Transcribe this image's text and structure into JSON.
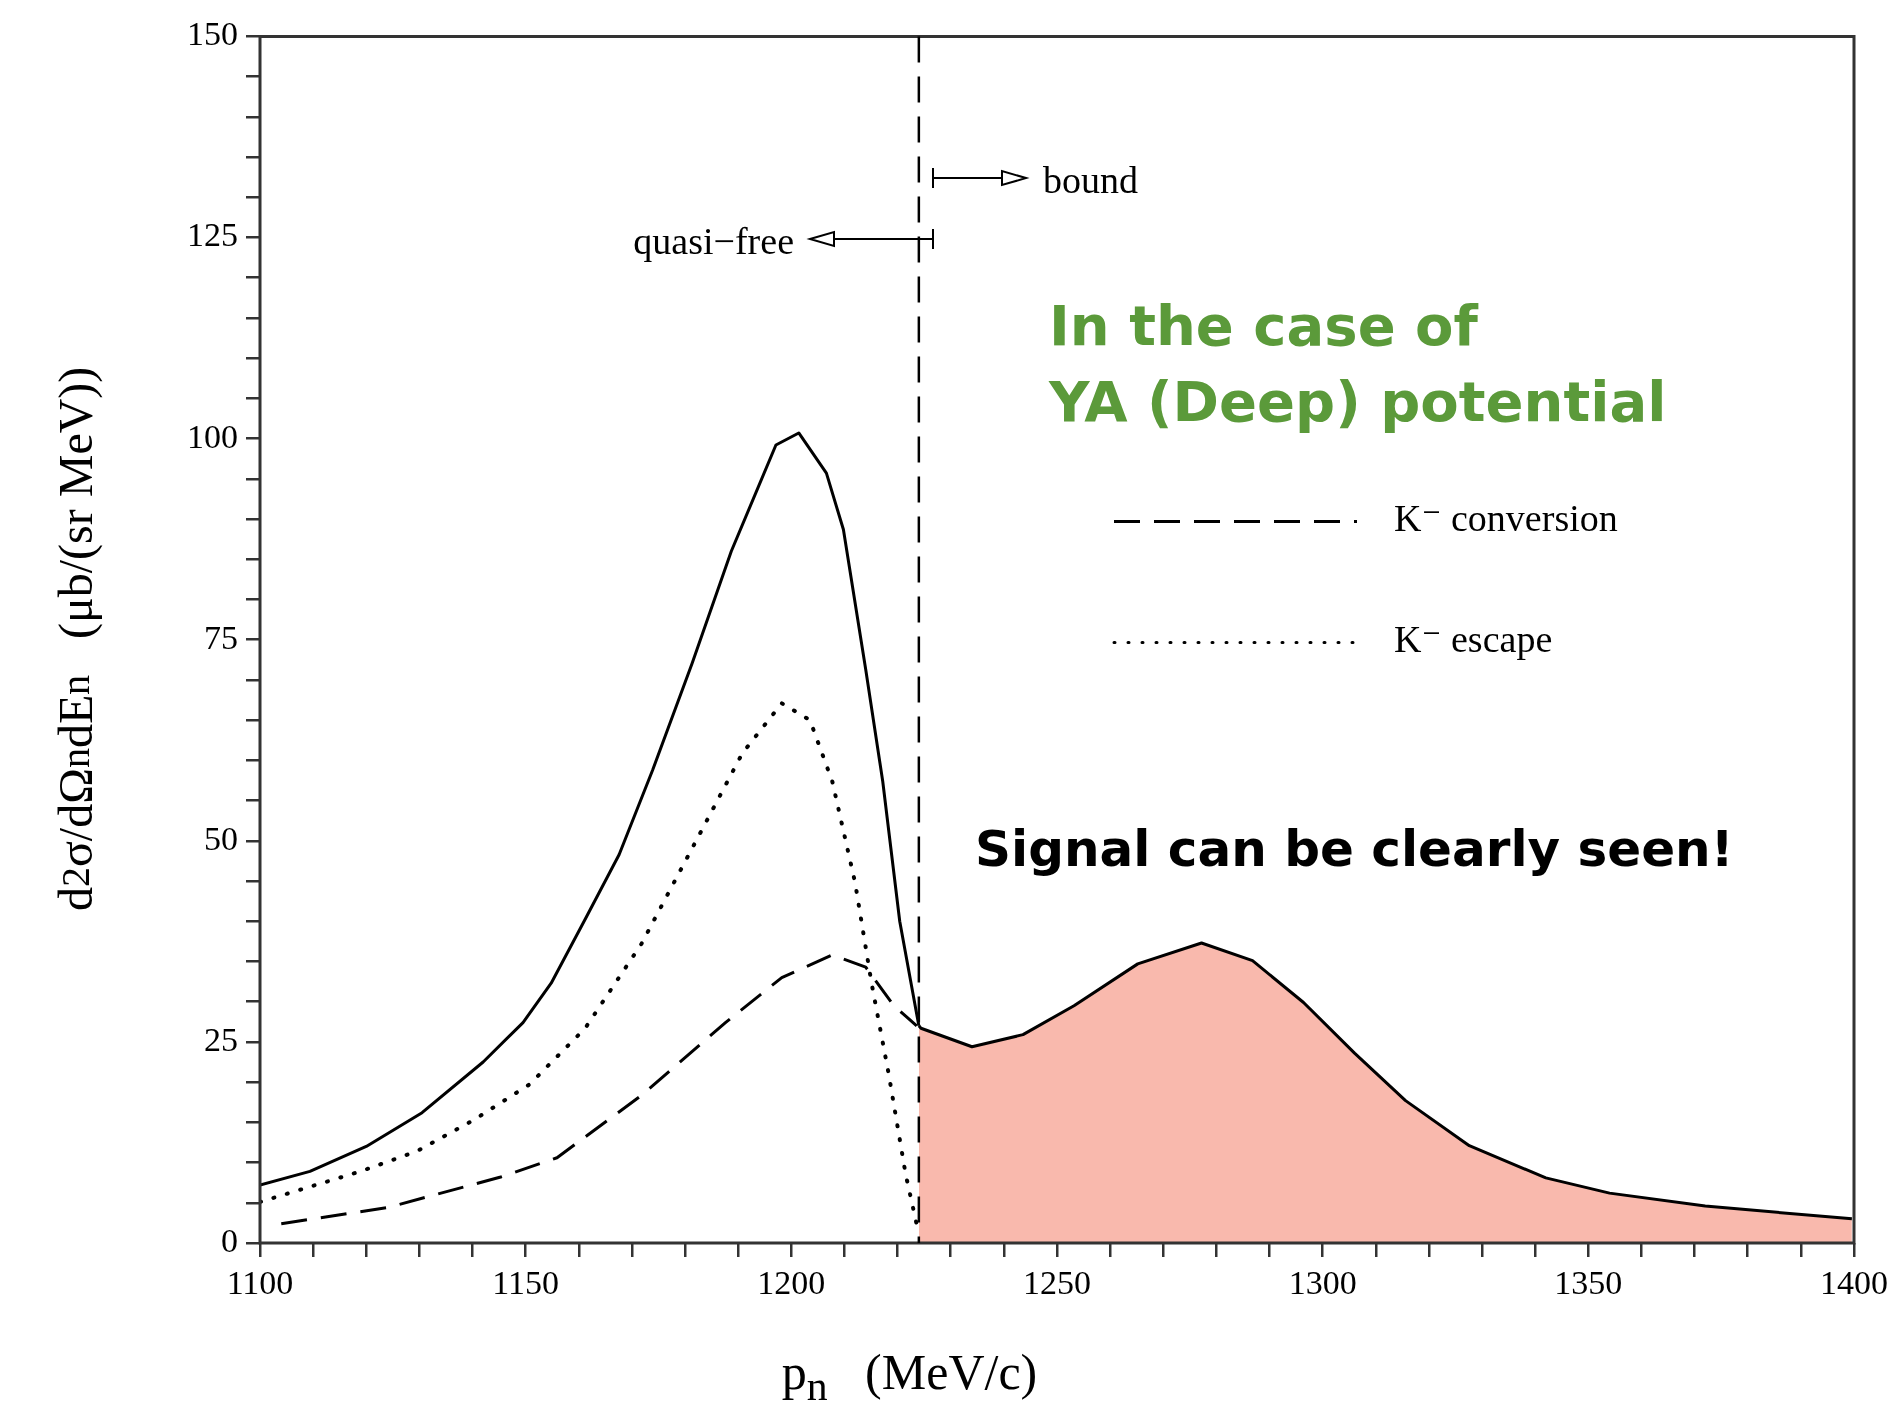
{
  "chart_data": {
    "type": "line",
    "xlabel": "p$_{n}$   (MeV/c)",
    "ylabel": "d$^{2}$σ/dΩ$_{n}$dE$_{n}$   (μb/(sr MeV))",
    "xlim": [
      1100,
      1400
    ],
    "ylim": [
      0,
      150
    ],
    "xticks": [
      1100,
      {
        "value": 1110,
        "label": null
      },
      {
        "value": 1120,
        "label": null
      },
      {
        "value": 1130,
        "label": null
      },
      {
        "value": 1140,
        "label": null
      },
      1150,
      {
        "value": 1160,
        "label": null
      },
      {
        "value": 1170,
        "label": null
      },
      {
        "value": 1180,
        "label": null
      },
      {
        "value": 1190,
        "label": null
      },
      1200,
      {
        "value": 1210,
        "label": null
      },
      {
        "value": 1220,
        "label": null
      },
      {
        "value": 1230,
        "label": null
      },
      {
        "value": 1240,
        "label": null
      },
      1250,
      {
        "value": 1260,
        "label": null
      },
      {
        "value": 1270,
        "label": null
      },
      {
        "value": 1280,
        "label": null
      },
      {
        "value": 1290,
        "label": null
      },
      1300,
      {
        "value": 1310,
        "label": null
      },
      {
        "value": 1320,
        "label": null
      },
      {
        "value": 1330,
        "label": null
      },
      {
        "value": 1340,
        "label": null
      },
      1350,
      {
        "value": 1360,
        "label": null
      },
      {
        "value": 1370,
        "label": null
      },
      {
        "value": 1380,
        "label": null
      },
      {
        "value": 1390,
        "label": null
      },
      1400
    ],
    "yticks": [
      0,
      {
        "value": 5,
        "label": null
      },
      {
        "value": 10,
        "label": null
      },
      {
        "value": 15,
        "label": null
      },
      {
        "value": 20,
        "label": null
      },
      25,
      {
        "value": 30,
        "label": null
      },
      {
        "value": 35,
        "label": null
      },
      {
        "value": 40,
        "label": null
      },
      {
        "value": 45,
        "label": null
      },
      50,
      {
        "value": 55,
        "label": null
      },
      {
        "value": 60,
        "label": null
      },
      {
        "value": 65,
        "label": null
      },
      {
        "value": 70,
        "label": null
      },
      75,
      {
        "value": 80,
        "label": null
      },
      {
        "value": 85,
        "label": null
      },
      {
        "value": 90,
        "label": null
      },
      {
        "value": 95,
        "label": null
      },
      100,
      {
        "value": 105,
        "label": null
      },
      {
        "value": 110,
        "label": null
      },
      {
        "value": 115,
        "label": null
      },
      {
        "value": 120,
        "label": null
      },
      125,
      {
        "value": 130,
        "label": null
      },
      {
        "value": 135,
        "label": null
      },
      {
        "value": 140,
        "label": null
      },
      {
        "value": 145,
        "label": null
      },
      150
    ],
    "grid": false,
    "legend": "right",
    "series": [
      {
        "type": "line",
        "color": "#000000",
        "line_style": "solid",
        "x": [
          1100,
          1109.4,
          1120,
          1130.5,
          1142,
          1149.5,
          1154.8,
          1161,
          1167.6,
          1173.9,
          1181.3,
          1188.7,
          1197.1,
          1201.4,
          1206.6,
          1209.8,
          1214,
          1217.2,
          1220.4,
          1224
        ],
        "values": [
          7.2,
          8.9,
          12,
          16.2,
          22.5,
          27.4,
          32.3,
          40,
          48.3,
          58.8,
          72,
          86,
          99.2,
          100.7,
          95.7,
          88.7,
          71.3,
          57.4,
          40,
          27
        ]
      },
      {
        "type": "area",
        "color": "#f9b9ad",
        "x": [
          1224,
          1224.4,
          1234,
          1243.6,
          1253.2,
          1265.2,
          1277.2,
          1286.8,
          1296.4,
          1306,
          1315.6,
          1327.6,
          1342,
          1354,
          1372,
          1399.6
        ],
        "values": [
          27,
          26.7,
          24.4,
          25.9,
          29.5,
          34.7,
          37.3,
          35.1,
          29.9,
          23.6,
          17.7,
          12.1,
          8.1,
          6.2,
          4.6,
          3.0
        ]
      },
      {
        "type": "line",
        "name": "K⁻ conversion",
        "color": "#000000",
        "line_style": "dashed",
        "x": [
          1104,
          1124,
          1145.3,
          1155.9,
          1171.7,
          1187.6,
          1198.2,
          1207.7,
          1214,
          1219.3,
          1223.6
        ],
        "values": [
          2.4,
          4.4,
          8.2,
          10.6,
          18.3,
          27.4,
          33,
          35.8,
          34.3,
          29.5,
          27
        ]
      },
      {
        "type": "line",
        "name": "K⁻ escape",
        "color": "#000000",
        "line_style": "dotted",
        "x": [
          1100,
          1118.9,
          1129.5,
          1140,
          1150.7,
          1161.2,
          1171.8,
          1182.4,
          1190.8,
          1198.2,
          1203.5,
          1207.7,
          1212,
          1215.1,
          1218.3,
          1221.5,
          1223.6
        ],
        "values": [
          5.1,
          8.9,
          11.4,
          15.2,
          19.7,
          26.7,
          37.2,
          50.4,
          60.9,
          67.1,
          65,
          57.4,
          44.8,
          32.3,
          21.1,
          8.6,
          2.3
        ]
      }
    ],
    "ref_lines": [
      {
        "axis": "x",
        "value": 1224,
        "line_style": "dashed",
        "color": "#000000"
      }
    ],
    "annotations": [
      "quasi−free",
      "bound",
      "In the case of\nYA (Deep) potential",
      "Signal can be clearly seen!"
    ]
  }
}
